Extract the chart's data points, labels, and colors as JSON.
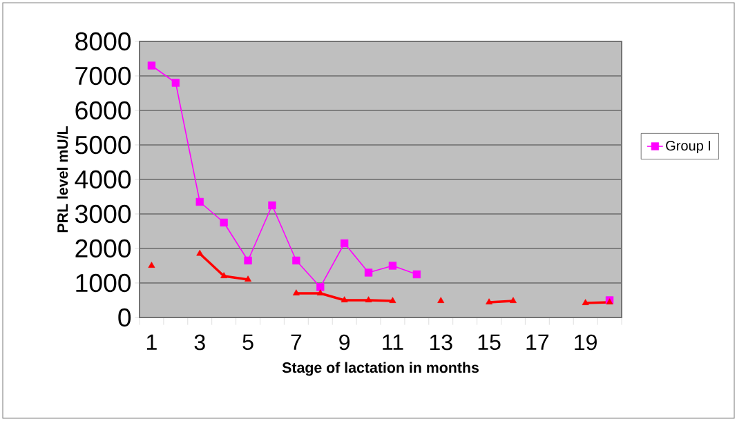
{
  "chart_data": {
    "type": "line",
    "xlabel": "Stage of lactation in months",
    "ylabel": "PRL level mU/L",
    "categories": [
      "1",
      null,
      "3",
      null,
      "5",
      null,
      "7",
      null,
      "9",
      null,
      "11",
      null,
      "13",
      null,
      "15",
      null,
      "17",
      null,
      "19",
      null
    ],
    "series": [
      {
        "name": "Group I",
        "color": "#ff00ff",
        "marker": "square",
        "values": [
          7300,
          6800,
          3350,
          2750,
          1650,
          3250,
          1650,
          880,
          2150,
          1300,
          1500,
          1250,
          null,
          null,
          null,
          null,
          null,
          null,
          null,
          500
        ]
      },
      {
        "color": "#ff0000",
        "marker": "triangle",
        "values": [
          1500,
          null,
          1850,
          1200,
          1100,
          null,
          700,
          700,
          500,
          500,
          480,
          null,
          480,
          null,
          440,
          480,
          null,
          null,
          420,
          440
        ]
      }
    ],
    "ylim": [
      0,
      8000
    ],
    "yticks": [
      0,
      1000,
      2000,
      3000,
      4000,
      5000,
      6000,
      7000,
      8000
    ],
    "grid": "y",
    "legend": "right"
  }
}
